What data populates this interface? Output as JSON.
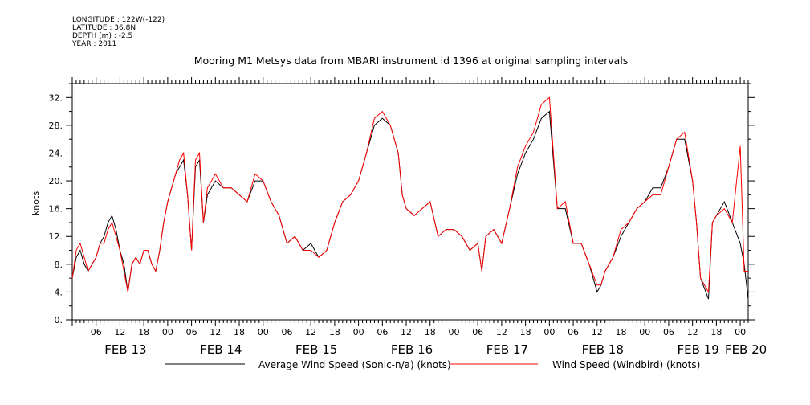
{
  "meta": {
    "longitude": "LONGITUDE : 122W(-122)",
    "latitude": "LATITUDE : 36.8N",
    "depth": "DEPTH (m) : -2.5",
    "year": "YEAR : 2011"
  },
  "colors": {
    "series_black": "#000000",
    "series_red": "#ff0000"
  },
  "chart_data": {
    "type": "line",
    "title": "Mooring M1 Metsys data from MBARI instrument id 1396 at original sampling intervals",
    "ylabel": "knots",
    "xlabel": "",
    "ylim": [
      0,
      34
    ],
    "yticks": [
      0,
      4,
      8,
      12,
      16,
      20,
      24,
      28,
      32
    ],
    "ytick_labels": [
      "0.",
      "4.",
      "8.",
      "12.",
      "16.",
      "20.",
      "24.",
      "28.",
      "32."
    ],
    "xlim_hours": [
      0,
      170
    ],
    "hour_ticks": [
      {
        "label": "06",
        "t": 6
      },
      {
        "label": "12",
        "t": 12
      },
      {
        "label": "18",
        "t": 18
      },
      {
        "label": "00",
        "t": 24
      },
      {
        "label": "06",
        "t": 30
      },
      {
        "label": "12",
        "t": 36
      },
      {
        "label": "18",
        "t": 42
      },
      {
        "label": "00",
        "t": 48
      },
      {
        "label": "06",
        "t": 54
      },
      {
        "label": "12",
        "t": 60
      },
      {
        "label": "18",
        "t": 66
      },
      {
        "label": "00",
        "t": 72
      },
      {
        "label": "06",
        "t": 78
      },
      {
        "label": "12",
        "t": 84
      },
      {
        "label": "18",
        "t": 90
      },
      {
        "label": "00",
        "t": 96
      },
      {
        "label": "06",
        "t": 102
      },
      {
        "label": "12",
        "t": 108
      },
      {
        "label": "18",
        "t": 114
      },
      {
        "label": "00",
        "t": 120
      },
      {
        "label": "06",
        "t": 126
      },
      {
        "label": "12",
        "t": 132
      },
      {
        "label": "18",
        "t": 138
      },
      {
        "label": "00",
        "t": 144
      },
      {
        "label": "06",
        "t": 150
      },
      {
        "label": "12",
        "t": 156
      },
      {
        "label": "18",
        "t": 162
      },
      {
        "label": "00",
        "t": 168
      }
    ],
    "day_labels": [
      {
        "label": "FEB 13",
        "t": 12
      },
      {
        "label": "FEB 14",
        "t": 36
      },
      {
        "label": "FEB 15",
        "t": 60
      },
      {
        "label": "FEB 16",
        "t": 84
      },
      {
        "label": "FEB 17",
        "t": 108
      },
      {
        "label": "FEB 18",
        "t": 132
      },
      {
        "label": "FEB 19",
        "t": 156
      },
      {
        "label": "FEB 20",
        "t": 168
      }
    ],
    "series": [
      {
        "name": "Average Wind Speed (Sonic-n/a) (knots)",
        "color": "#000000",
        "points": [
          [
            0,
            6
          ],
          [
            1,
            9
          ],
          [
            2,
            10
          ],
          [
            3,
            8
          ],
          [
            4,
            7
          ],
          [
            5,
            8
          ],
          [
            6,
            9
          ],
          [
            7,
            11
          ],
          [
            8,
            12
          ],
          [
            9,
            14
          ],
          [
            10,
            15
          ],
          [
            11,
            13
          ],
          [
            12,
            10
          ],
          [
            13,
            8
          ],
          [
            14,
            4
          ],
          [
            15,
            8
          ],
          [
            16,
            9
          ],
          [
            17,
            8
          ],
          [
            18,
            10
          ],
          [
            19,
            10
          ],
          [
            20,
            8
          ],
          [
            21,
            7
          ],
          [
            22,
            10
          ],
          [
            23,
            14
          ],
          [
            24,
            17
          ],
          [
            25,
            19
          ],
          [
            26,
            21
          ],
          [
            27,
            22
          ],
          [
            28,
            23
          ],
          [
            29,
            18
          ],
          [
            30,
            10
          ],
          [
            31,
            22
          ],
          [
            32,
            23
          ],
          [
            33,
            14
          ],
          [
            34,
            18
          ],
          [
            35,
            19
          ],
          [
            36,
            20
          ],
          [
            38,
            19
          ],
          [
            40,
            19
          ],
          [
            42,
            18
          ],
          [
            44,
            17
          ],
          [
            46,
            20
          ],
          [
            48,
            20
          ],
          [
            50,
            17
          ],
          [
            52,
            15
          ],
          [
            54,
            11
          ],
          [
            56,
            12
          ],
          [
            58,
            10
          ],
          [
            60,
            11
          ],
          [
            62,
            9
          ],
          [
            64,
            10
          ],
          [
            66,
            14
          ],
          [
            68,
            17
          ],
          [
            70,
            18
          ],
          [
            72,
            20
          ],
          [
            74,
            24
          ],
          [
            76,
            28
          ],
          [
            78,
            29
          ],
          [
            80,
            28
          ],
          [
            82,
            24
          ],
          [
            83,
            18
          ],
          [
            84,
            16
          ],
          [
            86,
            15
          ],
          [
            88,
            16
          ],
          [
            90,
            17
          ],
          [
            92,
            12
          ],
          [
            94,
            13
          ],
          [
            96,
            13
          ],
          [
            98,
            12
          ],
          [
            100,
            10
          ],
          [
            102,
            11
          ],
          [
            103,
            7
          ],
          [
            104,
            12
          ],
          [
            106,
            13
          ],
          [
            108,
            11
          ],
          [
            110,
            16
          ],
          [
            112,
            21
          ],
          [
            114,
            24
          ],
          [
            116,
            26
          ],
          [
            118,
            29
          ],
          [
            120,
            30
          ],
          [
            122,
            16
          ],
          [
            124,
            16
          ],
          [
            126,
            11
          ],
          [
            128,
            11
          ],
          [
            130,
            8
          ],
          [
            132,
            4
          ],
          [
            133,
            5
          ],
          [
            134,
            7
          ],
          [
            136,
            9
          ],
          [
            138,
            12
          ],
          [
            140,
            14
          ],
          [
            142,
            16
          ],
          [
            144,
            17
          ],
          [
            146,
            19
          ],
          [
            148,
            19
          ],
          [
            150,
            22
          ],
          [
            152,
            26
          ],
          [
            154,
            26
          ],
          [
            156,
            20
          ],
          [
            157,
            14
          ],
          [
            158,
            6
          ],
          [
            160,
            3
          ],
          [
            161,
            14
          ],
          [
            162,
            15
          ],
          [
            164,
            17
          ],
          [
            166,
            14
          ],
          [
            168,
            11
          ],
          [
            169,
            8
          ],
          [
            170,
            3
          ]
        ]
      },
      {
        "name": "Wind Speed (Windbird) (knots)",
        "color": "#ff0000",
        "points": [
          [
            0,
            6
          ],
          [
            1,
            10
          ],
          [
            2,
            11
          ],
          [
            3,
            9
          ],
          [
            4,
            7
          ],
          [
            5,
            8
          ],
          [
            6,
            9
          ],
          [
            7,
            11
          ],
          [
            8,
            11
          ],
          [
            9,
            13
          ],
          [
            10,
            14
          ],
          [
            11,
            12
          ],
          [
            12,
            10
          ],
          [
            13,
            7
          ],
          [
            14,
            4
          ],
          [
            15,
            8
          ],
          [
            16,
            9
          ],
          [
            17,
            8
          ],
          [
            18,
            10
          ],
          [
            19,
            10
          ],
          [
            20,
            8
          ],
          [
            21,
            7
          ],
          [
            22,
            10
          ],
          [
            23,
            14
          ],
          [
            24,
            17
          ],
          [
            25,
            19
          ],
          [
            26,
            21
          ],
          [
            27,
            23
          ],
          [
            28,
            24
          ],
          [
            29,
            18
          ],
          [
            30,
            10
          ],
          [
            31,
            23
          ],
          [
            32,
            24
          ],
          [
            33,
            14
          ],
          [
            34,
            19
          ],
          [
            35,
            20
          ],
          [
            36,
            21
          ],
          [
            38,
            19
          ],
          [
            40,
            19
          ],
          [
            42,
            18
          ],
          [
            44,
            17
          ],
          [
            46,
            21
          ],
          [
            48,
            20
          ],
          [
            50,
            17
          ],
          [
            52,
            15
          ],
          [
            54,
            11
          ],
          [
            56,
            12
          ],
          [
            58,
            10
          ],
          [
            60,
            10
          ],
          [
            62,
            9
          ],
          [
            64,
            10
          ],
          [
            66,
            14
          ],
          [
            68,
            17
          ],
          [
            70,
            18
          ],
          [
            72,
            20
          ],
          [
            74,
            24
          ],
          [
            76,
            29
          ],
          [
            78,
            30
          ],
          [
            80,
            28
          ],
          [
            82,
            24
          ],
          [
            83,
            18
          ],
          [
            84,
            16
          ],
          [
            86,
            15
          ],
          [
            88,
            16
          ],
          [
            90,
            17
          ],
          [
            92,
            12
          ],
          [
            94,
            13
          ],
          [
            96,
            13
          ],
          [
            98,
            12
          ],
          [
            100,
            10
          ],
          [
            102,
            11
          ],
          [
            103,
            7
          ],
          [
            104,
            12
          ],
          [
            106,
            13
          ],
          [
            108,
            11
          ],
          [
            110,
            16
          ],
          [
            112,
            22
          ],
          [
            114,
            25
          ],
          [
            116,
            27
          ],
          [
            118,
            31
          ],
          [
            120,
            32
          ],
          [
            122,
            16
          ],
          [
            124,
            17
          ],
          [
            126,
            11
          ],
          [
            128,
            11
          ],
          [
            130,
            8
          ],
          [
            132,
            5
          ],
          [
            133,
            5
          ],
          [
            134,
            7
          ],
          [
            136,
            9
          ],
          [
            138,
            13
          ],
          [
            140,
            14
          ],
          [
            142,
            16
          ],
          [
            144,
            17
          ],
          [
            146,
            18
          ],
          [
            148,
            18
          ],
          [
            150,
            22
          ],
          [
            152,
            26
          ],
          [
            154,
            27
          ],
          [
            156,
            20
          ],
          [
            157,
            14
          ],
          [
            158,
            6
          ],
          [
            160,
            4
          ],
          [
            161,
            14
          ],
          [
            162,
            15
          ],
          [
            164,
            16
          ],
          [
            166,
            14
          ],
          [
            168,
            25
          ],
          [
            169,
            7
          ],
          [
            170,
            7
          ]
        ]
      }
    ],
    "legend": "bottom"
  }
}
